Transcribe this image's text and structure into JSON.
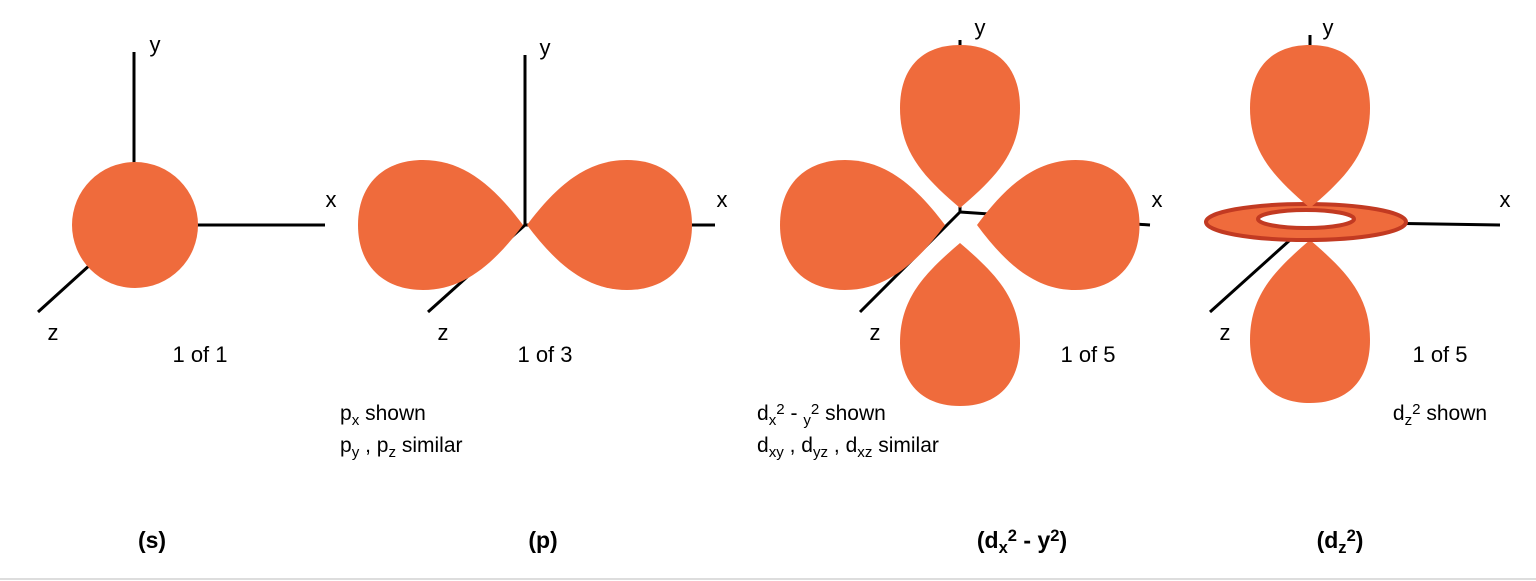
{
  "panels": [
    {
      "axes": {
        "x": "x",
        "y": "y",
        "z": "z"
      },
      "count": "1 of 1",
      "notes": [],
      "label": [
        {
          "t": "(s)"
        }
      ]
    },
    {
      "axes": {
        "x": "x",
        "y": "y",
        "z": "z"
      },
      "count": "1 of 3",
      "notes": [
        [
          {
            "t": "p"
          },
          {
            "sub": "x"
          },
          {
            "t": " shown"
          }
        ],
        [
          {
            "t": "p"
          },
          {
            "sub": "y"
          },
          {
            "t": " , p"
          },
          {
            "sub": "z"
          },
          {
            "t": " similar"
          }
        ]
      ],
      "label": [
        {
          "t": "(p)"
        }
      ]
    },
    {
      "axes": {
        "x": "x",
        "y": "y",
        "z": "z"
      },
      "count": "1 of 5",
      "notes": [
        [
          {
            "t": "d"
          },
          {
            "sub": "x"
          },
          {
            "sup": "2"
          },
          {
            "t": " - "
          },
          {
            "sub": "y"
          },
          {
            "sup": "2"
          },
          {
            "t": " shown"
          }
        ],
        [
          {
            "t": "d"
          },
          {
            "sub": "xy"
          },
          {
            "t": " , d"
          },
          {
            "sub": "yz"
          },
          {
            "t": " , d"
          },
          {
            "sub": "xz"
          },
          {
            "t": " similar"
          }
        ]
      ],
      "label": [
        {
          "t": "(d"
        },
        {
          "sub": "x"
        },
        {
          "sup": "2"
        },
        {
          "t": " - y"
        },
        {
          "sup": "2"
        },
        {
          "t": ")"
        }
      ]
    },
    {
      "axes": {
        "x": "x",
        "y": "y",
        "z": "z"
      },
      "count": "1 of 5",
      "notes": [
        [
          {
            "t": "d"
          },
          {
            "sub": "z"
          },
          {
            "sup": "2"
          },
          {
            "t": " shown"
          }
        ]
      ],
      "label": [
        {
          "t": "(d"
        },
        {
          "sub": "z"
        },
        {
          "sup": "2"
        },
        {
          "t": ")"
        }
      ]
    }
  ]
}
